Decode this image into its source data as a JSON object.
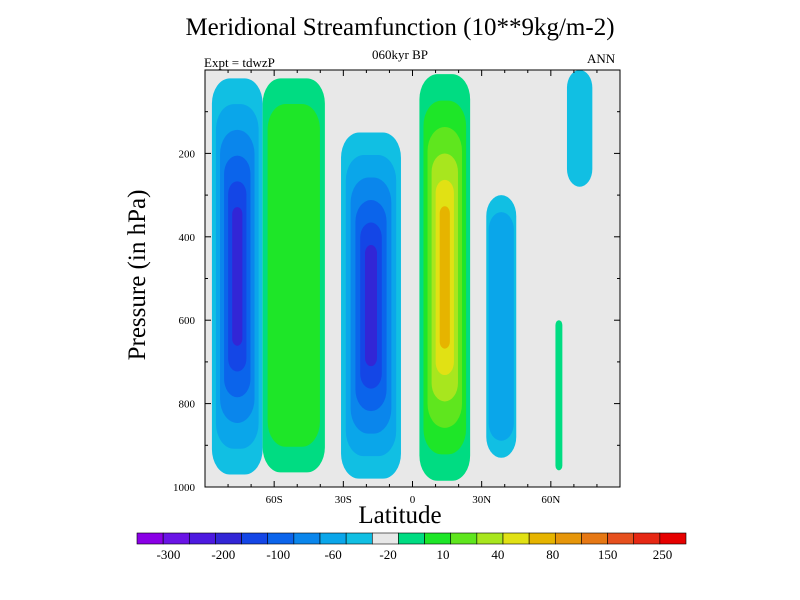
{
  "chart_data": {
    "type": "heatmap",
    "title": "Meridional Streamfunction (10**9kg/m-2)",
    "subtitle": "060kyr BP",
    "left_annotation": "Expt = tdwzP",
    "right_annotation": "ANN",
    "xlabel": "Latitude",
    "ylabel": "Pressure (in hPa)",
    "xlim": [
      -90,
      90
    ],
    "ylim": [
      1000,
      0
    ],
    "x_ticks": [
      -60,
      -30,
      0,
      30,
      60
    ],
    "x_tick_labels": [
      "60S",
      "30S",
      "0",
      "30N",
      "60N"
    ],
    "y_ticks": [
      200,
      400,
      600,
      800,
      1000
    ],
    "y_tick_labels": [
      "200",
      "400",
      "600",
      "800",
      "1000"
    ],
    "background_color": "#e8e8e8",
    "colorbar": {
      "colors": [
        "#8a00e6",
        "#6a14e6",
        "#4d19e0",
        "#3226d6",
        "#1446e6",
        "#0b64eb",
        "#0a86ec",
        "#0aa6ea",
        "#11bfe3",
        "#e8e8e8",
        "#00dc82",
        "#1ee628",
        "#5fe61e",
        "#a8e61e",
        "#e1e114",
        "#e6b400",
        "#e6960a",
        "#e67814",
        "#e6501e",
        "#e62814",
        "#e60000"
      ],
      "labels": [
        "-300",
        "-200",
        "-100",
        "-60",
        "-20",
        "10",
        "40",
        "80",
        "150",
        "250"
      ]
    },
    "contour_cells": [
      {
        "name": "southern-polar-cell",
        "sign": "negative",
        "lat_range": [
          -87,
          -65
        ],
        "pressure_range": [
          20,
          970
        ],
        "peak_level": 6
      },
      {
        "name": "southern-ferrel-cell",
        "sign": "positive",
        "lat_range": [
          -65,
          -38
        ],
        "pressure_range": [
          20,
          965
        ],
        "peak_level": 2
      },
      {
        "name": "southern-hadley-cell",
        "sign": "negative",
        "lat_range": [
          -31,
          -5
        ],
        "pressure_range": [
          150,
          980
        ],
        "peak_level": 6
      },
      {
        "name": "northern-hadley-cell",
        "sign": "positive",
        "lat_range": [
          3,
          25
        ],
        "pressure_range": [
          10,
          985
        ],
        "peak_level": 6
      },
      {
        "name": "northern-ferrel-cell",
        "sign": "negative",
        "lat_range": [
          32,
          45
        ],
        "pressure_range": [
          300,
          930
        ],
        "peak_level": 2
      },
      {
        "name": "northern-polar-cell",
        "sign": "negative",
        "lat_range": [
          67,
          78
        ],
        "pressure_range": [
          0,
          280
        ],
        "peak_level": 1
      },
      {
        "name": "northern-positive-sliver",
        "sign": "positive",
        "lat_range": [
          62,
          65
        ],
        "pressure_range": [
          600,
          960
        ],
        "peak_level": 1
      }
    ]
  }
}
